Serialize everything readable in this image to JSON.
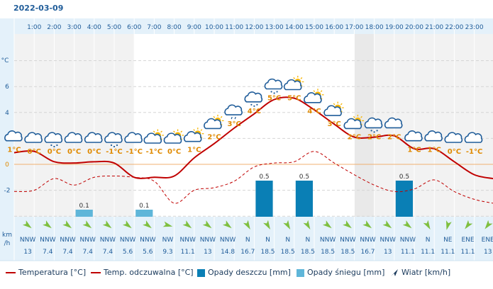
{
  "date": "2022-03-09",
  "chart_data": {
    "type": "line",
    "hours": [
      "1:00",
      "2:00",
      "3:00",
      "4:00",
      "5:00",
      "6:00",
      "7:00",
      "8:00",
      "9:00",
      "10:00",
      "11:00",
      "12:00",
      "13:00",
      "14:00",
      "15:00",
      "16:00",
      "17:00",
      "18:00",
      "19:00",
      "20:00",
      "21:00",
      "22:00",
      "23:00"
    ],
    "y_axis": {
      "unit": "°C",
      "ticks": [
        6,
        4,
        2,
        0,
        -2
      ],
      "range": [
        -4,
        8
      ]
    },
    "series": [
      {
        "name": "Temperatura [°C]",
        "style": "solid",
        "color": "#c00000",
        "values": [
          1,
          0.2,
          0.1,
          0.2,
          0.1,
          -1,
          -1,
          -0.9,
          0.5,
          1.6,
          2.8,
          3.9,
          5.0,
          5.1,
          4.2,
          3.1,
          2.1,
          2.1,
          2.2,
          1.2,
          1.2,
          0.2,
          -0.8
        ]
      },
      {
        "name": "Temp. odczuwalna [°C]",
        "style": "dashed",
        "color": "#c00000",
        "values": [
          -2.0,
          -1.1,
          -1.6,
          -1.0,
          -0.9,
          -1.0,
          -1.3,
          -3.0,
          -2.0,
          -1.8,
          -1.3,
          -0.2,
          0.1,
          0.2,
          1.0,
          0.1,
          -0.8,
          -1.6,
          -2.1,
          -1.9,
          -1.2,
          -2.1,
          -2.7
        ]
      }
    ],
    "point_labels": [
      "1°C",
      "0°C",
      "0°C",
      "0°C",
      "0°C",
      "-1°C",
      "-1°C",
      "-1°C",
      "0°C",
      "1°C",
      "2°C",
      "3°C",
      "4°C",
      "5°C",
      "5°C",
      "4°C",
      "3°C",
      "2°C",
      "2°C",
      "2°C",
      "1°C",
      "1°C",
      "0°C",
      "-1°C"
    ],
    "label_temps": [
      1,
      0,
      0,
      0,
      0,
      -1,
      -1,
      -1,
      0,
      1,
      2,
      3,
      4,
      5,
      5,
      4,
      3,
      2,
      2,
      2,
      1,
      1,
      0,
      -1
    ],
    "icons": [
      "cloud",
      "cloud",
      "snow-cloud",
      "cloud",
      "cloud",
      "snow-cloud",
      "cloud",
      "partly-cloudy",
      "partly-cloudy",
      "partly-cloudy",
      "partly-cloudy",
      "rain-cloud",
      "snow-cloud",
      "snow-cloud",
      "partly-cloudy",
      "partly-cloudy",
      "partly-cloudy",
      "partly-cloudy",
      "snow-cloud",
      "cloud",
      "cloud",
      "cloud",
      "cloud",
      "cloud"
    ],
    "precip_rain": {
      "name": "Opady deszczu [mm]",
      "color": "#0a7fb5",
      "values": [
        0,
        0,
        0,
        0,
        0,
        0,
        0,
        0,
        0,
        0,
        0,
        0,
        0.5,
        0,
        0.5,
        0,
        0,
        0,
        0,
        0.5,
        0,
        0,
        0,
        0
      ]
    },
    "precip_snow": {
      "name": "Opady śniegu [mm]",
      "color": "#5fb6d9",
      "values": [
        0,
        0,
        0,
        0.1,
        0,
        0,
        0.1,
        0,
        0,
        0,
        0,
        0,
        0,
        0,
        0,
        0,
        0,
        0,
        0,
        0,
        0,
        0,
        0,
        0
      ]
    },
    "precip_labels": [
      "",
      "",
      "",
      "0.1",
      "",
      "",
      "0.1",
      "",
      "",
      "",
      "",
      "",
      "0.5",
      "",
      "0.5",
      "",
      "",
      "",
      "",
      "0.5",
      "",
      "",
      "",
      ""
    ],
    "wind": {
      "name": "Wiatr [km/h]",
      "unit_label_1": "km",
      "unit_label_2": "/h",
      "directions": [
        "NNW",
        "NNW",
        "NNW",
        "NNW",
        "NNW",
        "NNW",
        "NNW",
        "NW",
        "NNW",
        "NNW",
        "NNW",
        "N",
        "N",
        "N",
        "N",
        "NNW",
        "NNW",
        "NNW",
        "NNW",
        "NNW",
        "N",
        "NE",
        "ENE",
        "ENE"
      ],
      "speeds": [
        "13",
        "7.4",
        "7.4",
        "7.4",
        "7.4",
        "5.6",
        "5.6",
        "9.3",
        "11.1",
        "13",
        "14.8",
        "16.7",
        "18.5",
        "18.5",
        "18.5",
        "18.5",
        "18.5",
        "16.7",
        "13",
        "11.1",
        "11.1",
        "11.1",
        "11.1",
        "13"
      ]
    },
    "night_columns": [
      0,
      1,
      2,
      3,
      4,
      5,
      18,
      19,
      20,
      21,
      22,
      23
    ],
    "shaded_slots": [
      0,
      1,
      2,
      3,
      4,
      5,
      17,
      18,
      19,
      20,
      21,
      22,
      23
    ]
  },
  "legend": {
    "temp": "Temperatura [°C]",
    "feels": "Temp. odczuwalna [°C]",
    "rain": "Opady deszczu [mm]",
    "snow": "Opady śniegu [mm]",
    "wind": "Wiatr [km/h]"
  },
  "colors": {
    "header_bg": "#e4f1fa",
    "line": "#c00000",
    "label": "#e08a00",
    "axis_text": "#1f5c99"
  }
}
